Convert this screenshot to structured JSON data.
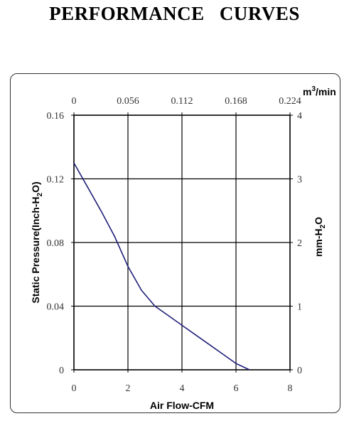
{
  "page": {
    "title": "PERFORMANCE    CURVES"
  },
  "chart_data": {
    "type": "line",
    "title": "PERFORMANCE    CURVES",
    "xlabel": "Air Flow-CFM",
    "ylabel": "Static Pressure(Inch-H2O)",
    "ylabel_parts": {
      "pre": "Static Pressure(Inch-H",
      "sub": "2",
      "post": "O)"
    },
    "xlim": [
      0,
      8
    ],
    "ylim": [
      0,
      0.16
    ],
    "x_ticks": [
      "0",
      "2",
      "4",
      "6",
      "8"
    ],
    "y_ticks": [
      "0",
      "0.04",
      "0.08",
      "0.12",
      "0.16"
    ],
    "x2_label": {
      "pre": "m",
      "sup": "3",
      "post": "/min"
    },
    "x2_ticks": [
      "0",
      "0.056",
      "0.112",
      "0.168",
      "0.224"
    ],
    "y2_label": {
      "pre": "mm-H",
      "sub": "2",
      "post": "O"
    },
    "y2_ticks": [
      "0",
      "1",
      "2",
      "3",
      "4"
    ],
    "grid": true,
    "line_color": "#1f1f7a",
    "series": [
      {
        "x": [
          0,
          0.5,
          1.0,
          1.5,
          2.0,
          2.5,
          3.0,
          3.5,
          4.0,
          4.5,
          5.0,
          5.5,
          6.0,
          6.5
        ],
        "y": [
          0.13,
          0.115,
          0.1,
          0.084,
          0.065,
          0.05,
          0.04,
          0.034,
          0.028,
          0.022,
          0.016,
          0.01,
          0.004,
          0
        ]
      }
    ]
  }
}
